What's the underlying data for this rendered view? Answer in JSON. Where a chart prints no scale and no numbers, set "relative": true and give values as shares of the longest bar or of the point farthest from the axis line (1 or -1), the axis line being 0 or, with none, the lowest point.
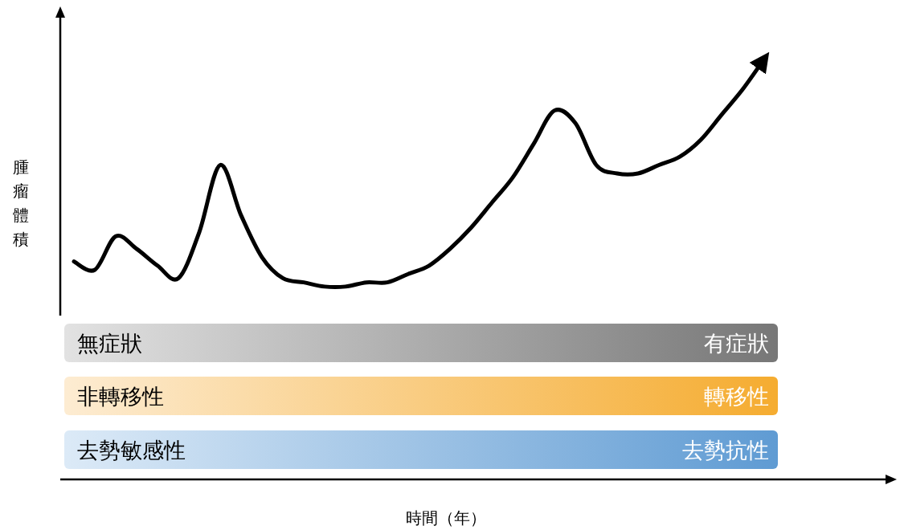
{
  "chart_data": {
    "type": "line",
    "relative": true,
    "xlabel": "時間（年）",
    "ylabel": "腫瘤體積",
    "categories": [
      null,
      null,
      null,
      null,
      null,
      null,
      null,
      null,
      null,
      null,
      null,
      null,
      null,
      null,
      null,
      null,
      null,
      null,
      null,
      null,
      null,
      null,
      null,
      null,
      null,
      null,
      null,
      null,
      null,
      null,
      null,
      null,
      null,
      null
    ],
    "series": [
      {
        "color": "#000000",
        "values": [
          0.52,
          0.5,
          0.58,
          0.55,
          0.51,
          0.48,
          0.59,
          0.75,
          0.63,
          0.53,
          0.48,
          0.47,
          0.46,
          0.46,
          0.47,
          0.47,
          0.49,
          0.51,
          0.55,
          0.6,
          0.66,
          0.72,
          0.8,
          0.88,
          0.85,
          0.75,
          0.73,
          0.73,
          0.75,
          0.77,
          0.81,
          0.87,
          0.93,
          1.0
        ]
      }
    ],
    "annotations": [
      "無症狀",
      "有症狀",
      "非轉移性",
      "轉移性",
      "去勢敏感性",
      "去勢抗性"
    ],
    "marker": "none",
    "line_style": "solid"
  }
}
